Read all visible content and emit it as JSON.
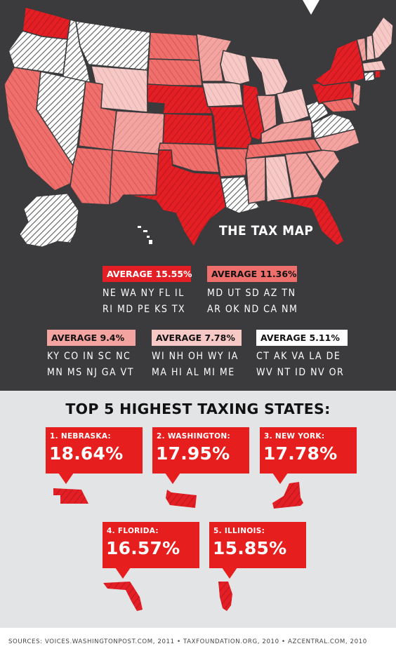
{
  "map": {
    "title": "THE TAX MAP",
    "colors": {
      "background": "#3b3b3d",
      "tier1": "#e31e24",
      "tier2": "#ef6f6c",
      "tier3": "#f3a3a0",
      "tier4": "#f6c9c6",
      "tier5": "#ffffff",
      "hatch_tier5": "#5a5a5c"
    },
    "icons": [
      "pointer-triangle-icon",
      "us-states-map-icon",
      "alaska-icon",
      "hawaii-icon"
    ]
  },
  "legend": [
    {
      "label": "AVERAGE 15.55%",
      "bg": "#e31e24",
      "fg": "#ffffff",
      "rows": [
        "NE WA NY FL IL",
        "RI MD PE KS TX"
      ]
    },
    {
      "label": "AVERAGE 11.36%",
      "bg": "#ef6f6c",
      "fg": "#111111",
      "rows": [
        "MD UT SD AZ TN",
        "AR OK ND CA NM"
      ]
    },
    {
      "label": "AVERAGE 9.4%",
      "bg": "#f3a3a0",
      "fg": "#111111",
      "rows": [
        "KY CO IN SC NC",
        "MN MS NJ GA VT"
      ]
    },
    {
      "label": "AVERAGE 7.78%",
      "bg": "#f6c9c6",
      "fg": "#111111",
      "rows": [
        "WI NH OH WY IA",
        "MA HI AL MI ME"
      ]
    },
    {
      "label": "AVERAGE 5.11%",
      "bg": "#ffffff",
      "fg": "#111111",
      "rows": [
        "CT AK VA LA DE",
        "WV NT ID NV OR"
      ]
    }
  ],
  "top5": {
    "heading": "TOP 5 HIGHEST TAXING STATES:",
    "accent": "#e61e1e",
    "states": [
      {
        "rank_label": "1. NEBRASKA:",
        "value": "18.64%",
        "icon": "nebraska-icon"
      },
      {
        "rank_label": "2. WASHINGTON:",
        "value": "17.95%",
        "icon": "washington-icon"
      },
      {
        "rank_label": "3. NEW YORK:",
        "value": "17.78%",
        "icon": "new-york-icon"
      },
      {
        "rank_label": "4. FLORIDA:",
        "value": "16.57%",
        "icon": "florida-icon"
      },
      {
        "rank_label": "5. ILLINOIS:",
        "value": "15.85%",
        "icon": "illinois-icon"
      }
    ]
  },
  "footer": {
    "sources": "SOURCES:  VOICES.WASHINGTONPOST.COM, 2011  •  TAXFOUNDATION.ORG, 2010  •  AZCENTRAL.COM, 2010"
  }
}
